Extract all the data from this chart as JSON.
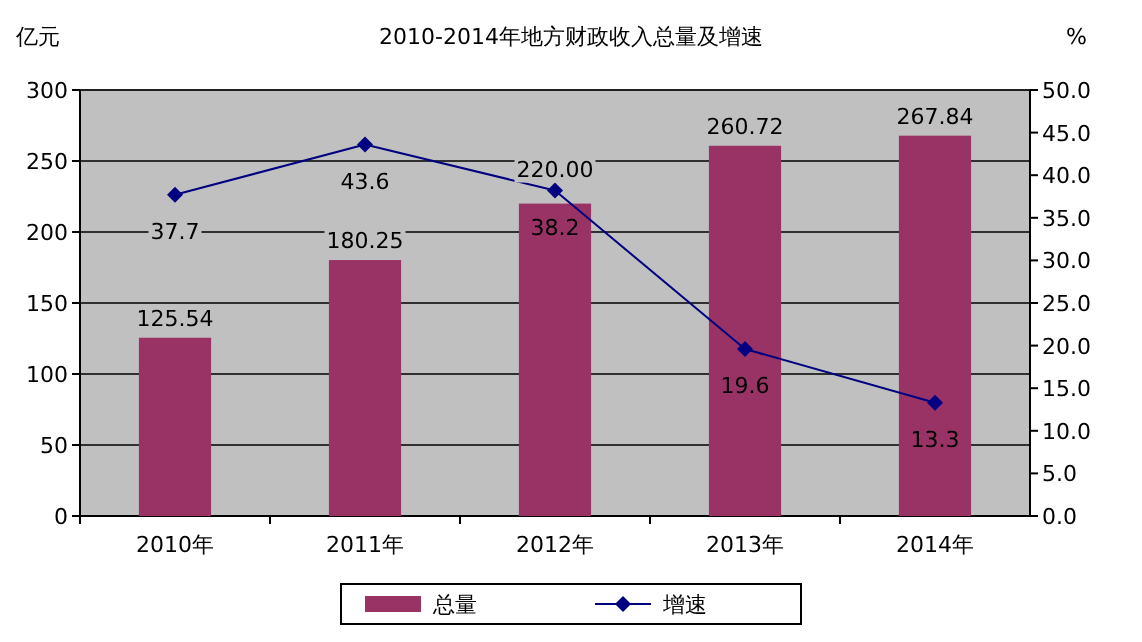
{
  "chart_data": {
    "type": "bar",
    "title": "2010-2014年地方财政收入总量及增速",
    "ylabel": "亿元",
    "y2label": "%",
    "categories": [
      "2010年",
      "2011年",
      "2012年",
      "2013年",
      "2014年"
    ],
    "series": [
      {
        "name": "总量",
        "color": "#993366",
        "values": [
          125.54,
          180.25,
          220.0,
          260.72,
          267.84
        ],
        "value_labels": [
          "125.54",
          "180.25",
          "220.00",
          "260.72",
          "267.84"
        ]
      },
      {
        "name": "增速",
        "type": "line",
        "axis": "y2",
        "color": "#000080",
        "marker": "diamond",
        "line_style": "solid",
        "values": [
          37.7,
          43.6,
          38.2,
          19.6,
          13.3
        ],
        "value_labels": [
          "37.7",
          "43.6",
          "38.2",
          "19.6",
          "13.3"
        ]
      }
    ],
    "ylim": [
      0,
      300
    ],
    "yticks": [
      0,
      50,
      100,
      150,
      200,
      250,
      300
    ],
    "y2lim": [
      0,
      50
    ],
    "y2ticks": [
      {
        "value": 0,
        "label": "0.0"
      },
      {
        "value": 5,
        "label": "5.0"
      },
      {
        "value": 10,
        "label": "10.0"
      },
      {
        "value": 15,
        "label": "15.0"
      },
      {
        "value": 20,
        "label": "20.0"
      },
      {
        "value": 25,
        "label": "25.0"
      },
      {
        "value": 30,
        "label": "30.0"
      },
      {
        "value": 35,
        "label": "35.0"
      },
      {
        "value": 40,
        "label": "40.0"
      },
      {
        "value": 45,
        "label": "45.0"
      },
      {
        "value": 50,
        "label": "50.0"
      }
    ],
    "grid": "y",
    "legend": "bottom"
  }
}
